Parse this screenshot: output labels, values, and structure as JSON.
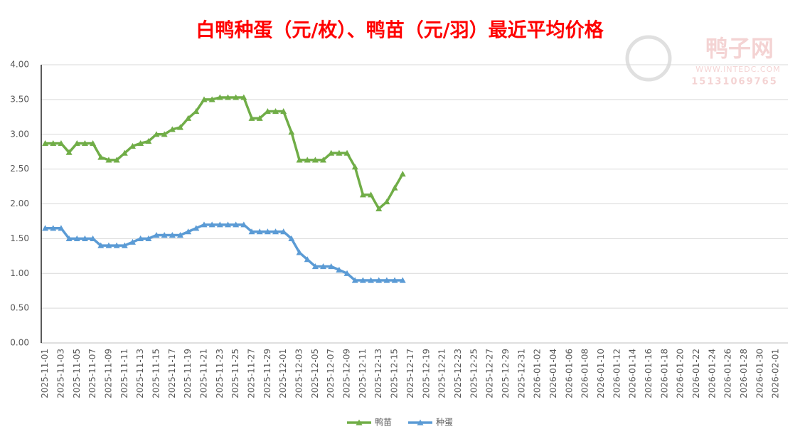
{
  "chart_data": {
    "type": "line",
    "title": "白鸭种蛋（元/枚）、鸭苗（元/羽）最近平均价格",
    "watermark": {
      "name": "鸭子网",
      "url": "WWW.INTEDC.COM",
      "phone": "15131069765"
    },
    "categories": [
      "2025-11-01",
      null,
      "2025-11-03",
      null,
      "2025-11-05",
      null,
      "2025-11-07",
      null,
      "2025-11-09",
      null,
      "2025-11-11",
      null,
      "2025-11-13",
      null,
      "2025-11-15",
      null,
      "2025-11-17",
      null,
      "2025-11-19",
      null,
      "2025-11-21",
      null,
      "2025-11-23",
      null,
      "2025-11-25",
      null,
      "2025-11-27",
      null,
      "2025-11-29",
      null,
      "2025-12-01",
      null,
      "2025-12-03",
      null,
      "2025-12-05",
      null,
      "2025-12-07",
      null,
      "2025-12-09",
      null,
      "2025-12-11",
      null,
      "2025-12-13",
      null,
      "2025-12-15",
      null,
      "2025-12-17",
      null,
      "2025-12-19",
      null,
      "2025-12-21",
      null,
      "2025-12-23",
      null,
      "2025-12-25",
      null,
      "2025-12-27",
      null,
      "2025-12-29",
      null,
      "2025-12-31",
      null,
      "2026-01-02",
      null,
      "2026-01-04",
      null,
      "2026-01-06",
      null,
      "2026-01-08",
      null,
      "2026-01-10",
      null,
      "2026-01-12",
      null,
      "2026-01-14",
      null,
      "2026-01-16",
      null,
      "2026-01-18",
      null,
      "2026-01-20",
      null,
      "2026-01-22",
      null,
      "2026-01-24",
      null,
      "2026-01-26",
      null,
      "2026-01-28",
      null,
      "2026-01-30",
      null,
      "2026-02-01",
      null
    ],
    "series": [
      {
        "name": "鸭苗",
        "color": "#70ad47",
        "values": [
          2.87,
          2.87,
          2.87,
          2.74,
          2.87,
          2.87,
          2.87,
          2.67,
          2.63,
          2.63,
          2.73,
          2.83,
          2.87,
          2.9,
          3.0,
          3.0,
          3.07,
          3.1,
          3.23,
          3.33,
          3.5,
          3.5,
          3.53,
          3.53,
          3.53,
          3.53,
          3.23,
          3.23,
          3.33,
          3.33,
          3.33,
          3.03,
          2.63,
          2.63,
          2.63,
          2.63,
          2.73,
          2.73,
          2.73,
          2.53,
          2.13,
          2.13,
          1.93,
          2.03,
          2.23,
          2.43,
          null,
          null,
          null,
          null,
          null,
          null,
          null,
          null,
          null,
          null,
          null,
          null,
          null,
          null,
          null,
          null,
          null,
          null,
          null,
          null,
          null,
          null,
          null,
          null,
          null,
          null,
          null,
          null,
          null,
          null,
          null,
          null,
          null,
          null,
          null,
          null,
          null,
          null,
          null,
          null,
          null,
          null,
          null,
          null,
          null,
          null,
          null,
          null
        ]
      },
      {
        "name": "种蛋",
        "color": "#5b9bd5",
        "values": [
          1.65,
          1.65,
          1.65,
          1.5,
          1.5,
          1.5,
          1.5,
          1.4,
          1.4,
          1.4,
          1.4,
          1.45,
          1.5,
          1.5,
          1.55,
          1.55,
          1.55,
          1.55,
          1.6,
          1.65,
          1.7,
          1.7,
          1.7,
          1.7,
          1.7,
          1.7,
          1.6,
          1.6,
          1.6,
          1.6,
          1.6,
          1.5,
          1.3,
          1.2,
          1.1,
          1.1,
          1.1,
          1.05,
          1.0,
          0.9,
          0.9,
          0.9,
          0.9,
          0.9,
          0.9,
          0.9,
          null,
          null,
          null,
          null,
          null,
          null,
          null,
          null,
          null,
          null,
          null,
          null,
          null,
          null,
          null,
          null,
          null,
          null,
          null,
          null,
          null,
          null,
          null,
          null,
          null,
          null,
          null,
          null,
          null,
          null,
          null,
          null,
          null,
          null,
          null,
          null,
          null,
          null,
          null,
          null,
          null,
          null,
          null,
          null,
          null,
          null,
          null,
          null
        ]
      }
    ],
    "ylim": [
      0,
      4
    ],
    "yticks": [
      {
        "value": 0,
        "label": "0.00"
      },
      {
        "value": 0.5,
        "label": "0.50"
      },
      {
        "value": 1,
        "label": "1.00"
      },
      {
        "value": 1.5,
        "label": "1.50"
      },
      {
        "value": 2,
        "label": "2.00"
      },
      {
        "value": 2.5,
        "label": "2.50"
      },
      {
        "value": 3,
        "label": "3.00"
      },
      {
        "value": 3.5,
        "label": "3.50"
      },
      {
        "value": 4,
        "label": "4.00"
      }
    ],
    "grid": true,
    "legend": "bottom",
    "marker": "triangle"
  }
}
